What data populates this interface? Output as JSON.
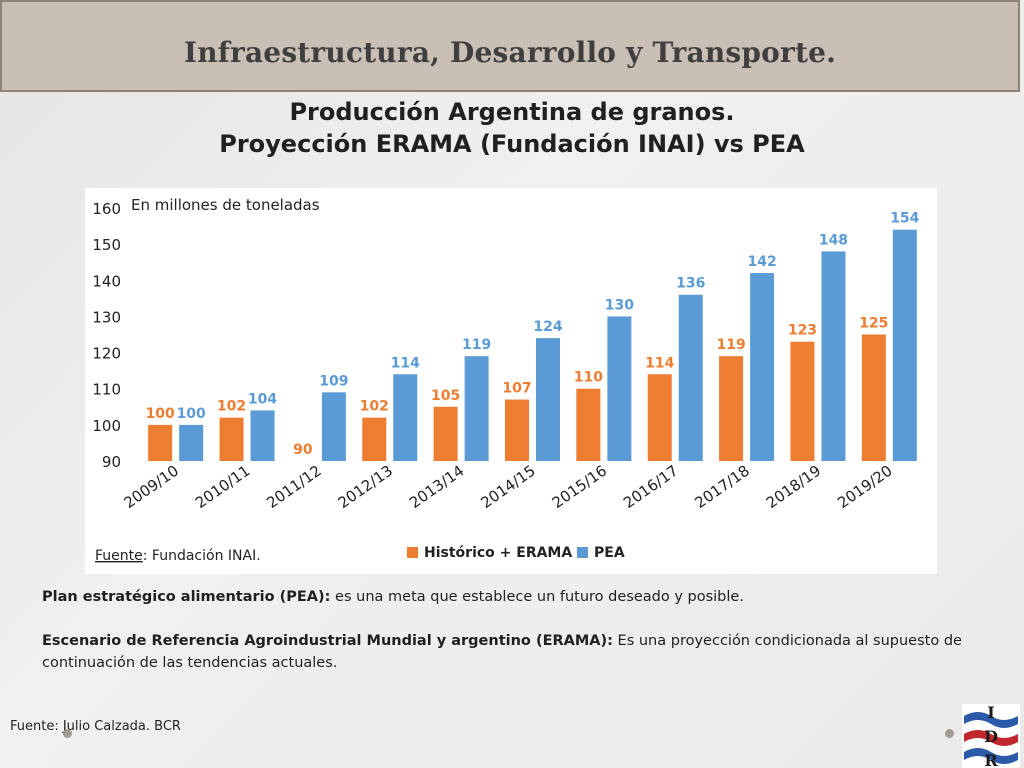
{
  "header": {
    "title": "Infraestructura, Desarrollo y Transporte."
  },
  "slide": {
    "title_line1": "Producción Argentina de granos.",
    "title_line2": "Proyección ERAMA (Fundación INAI) vs PEA"
  },
  "chart_data": {
    "type": "bar",
    "unit_label": "En millones de toneladas",
    "categories": [
      "2009/10",
      "2010/11",
      "2011/12",
      "2012/13",
      "2013/14",
      "2014/15",
      "2015/16",
      "2016/17",
      "2017/18",
      "2018/19",
      "2019/20"
    ],
    "series": [
      {
        "name": "Histórico + ERAMA",
        "color": "#ed7d31",
        "values": [
          100,
          102,
          90,
          102,
          105,
          107,
          110,
          114,
          119,
          123,
          125
        ]
      },
      {
        "name": "PEA",
        "color": "#5b9bd5",
        "values": [
          100,
          104,
          109,
          114,
          119,
          124,
          130,
          136,
          142,
          148,
          154
        ]
      }
    ],
    "ylim": [
      90,
      160
    ],
    "yticks": [
      90,
      100,
      110,
      120,
      130,
      140,
      150,
      160
    ],
    "legend_position": "bottom",
    "grid": false,
    "source_label": "Fuente",
    "source_value": ": Fundación INAI."
  },
  "description": {
    "pea_term": "Plan estratégico alimentario (PEA):",
    "pea_text": " es una meta que establece un futuro deseado y posible.",
    "erama_term": "Escenario de Referencia Agroindustrial Mundial y argentino (ERAMA):",
    "erama_text": " Es una proyección condicionada al supuesto de continuación de las tendencias actuales."
  },
  "footer": {
    "source": "Fuente: Julio Calzada. BCR",
    "logo_letters": [
      "I",
      "D",
      "R"
    ]
  }
}
